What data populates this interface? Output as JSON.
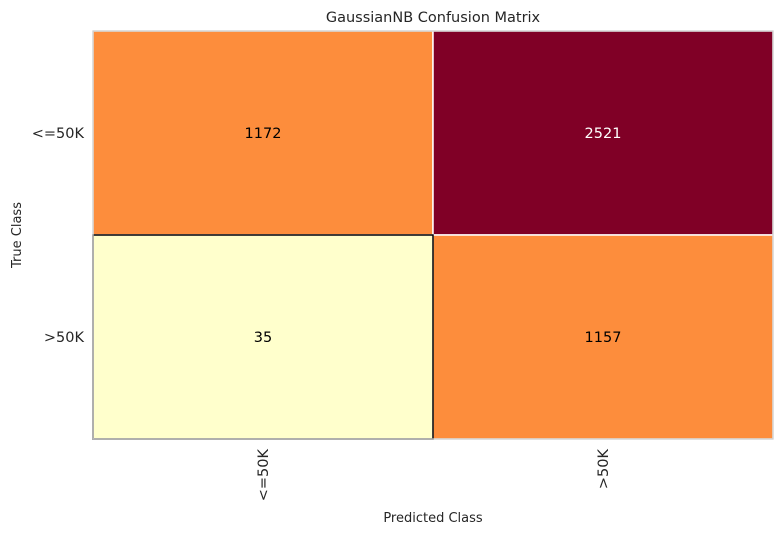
{
  "chart_data": {
    "type": "heatmap",
    "title": "GaussianNB Confusion Matrix",
    "xlabel": "Predicted Class",
    "ylabel": "True Class",
    "x_categories": [
      "<=50K",
      ">50K"
    ],
    "y_categories": [
      "<=50K",
      ">50K"
    ],
    "values": [
      [
        1172,
        2521
      ],
      [
        35,
        1157
      ]
    ],
    "cell_colors": [
      [
        "#fd8d3c",
        "#800026"
      ],
      [
        "#ffffcc",
        "#fd8d3c"
      ]
    ],
    "text_colors": [
      [
        "#000000",
        "#ffffff"
      ],
      [
        "#000000",
        "#000000"
      ]
    ],
    "colormap": "YlOrRd",
    "grid": false,
    "legend": "none"
  }
}
